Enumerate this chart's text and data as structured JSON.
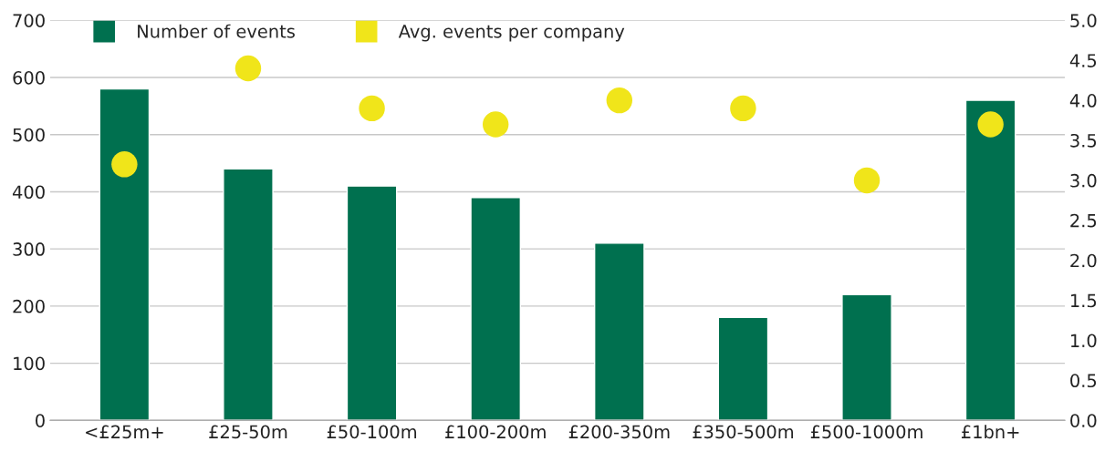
{
  "chart_data": {
    "type": "bar",
    "categories": [
      "<£25m+",
      "£25-50m",
      "£50-100m",
      "£100-200m",
      "£200-350m",
      "£350-500m",
      "£500-1000m",
      "£1bn+"
    ],
    "series": [
      {
        "name": "Number of events",
        "color": "#00704f",
        "values": [
          580,
          440,
          410,
          390,
          310,
          180,
          220,
          560
        ]
      },
      {
        "name": "Avg. events per company",
        "type": "scatter",
        "axis": "y2",
        "color": "#f0e51a",
        "values": [
          3.2,
          4.4,
          3.9,
          3.7,
          4.0,
          3.9,
          3.0,
          3.7
        ]
      }
    ],
    "ylim": [
      0,
      700
    ],
    "yticks": [
      0,
      100,
      200,
      300,
      400,
      500,
      600,
      700
    ],
    "y2lim": [
      0,
      5
    ],
    "y2ticks": [
      {
        "value": 0,
        "label": "0.0"
      },
      {
        "value": 0.5,
        "label": "0.5"
      },
      {
        "value": 1,
        "label": "1.0"
      },
      {
        "value": 1.5,
        "label": "1.5"
      },
      {
        "value": 2,
        "label": "2.0"
      },
      {
        "value": 2.5,
        "label": "2.5"
      },
      {
        "value": 3,
        "label": "3.0"
      },
      {
        "value": 3.5,
        "label": "3.5"
      },
      {
        "value": 4,
        "label": "4.0"
      },
      {
        "value": 4.5,
        "label": "4.5"
      },
      {
        "value": 5,
        "label": "5.0"
      }
    ],
    "grid": "y",
    "legend": "top left"
  }
}
